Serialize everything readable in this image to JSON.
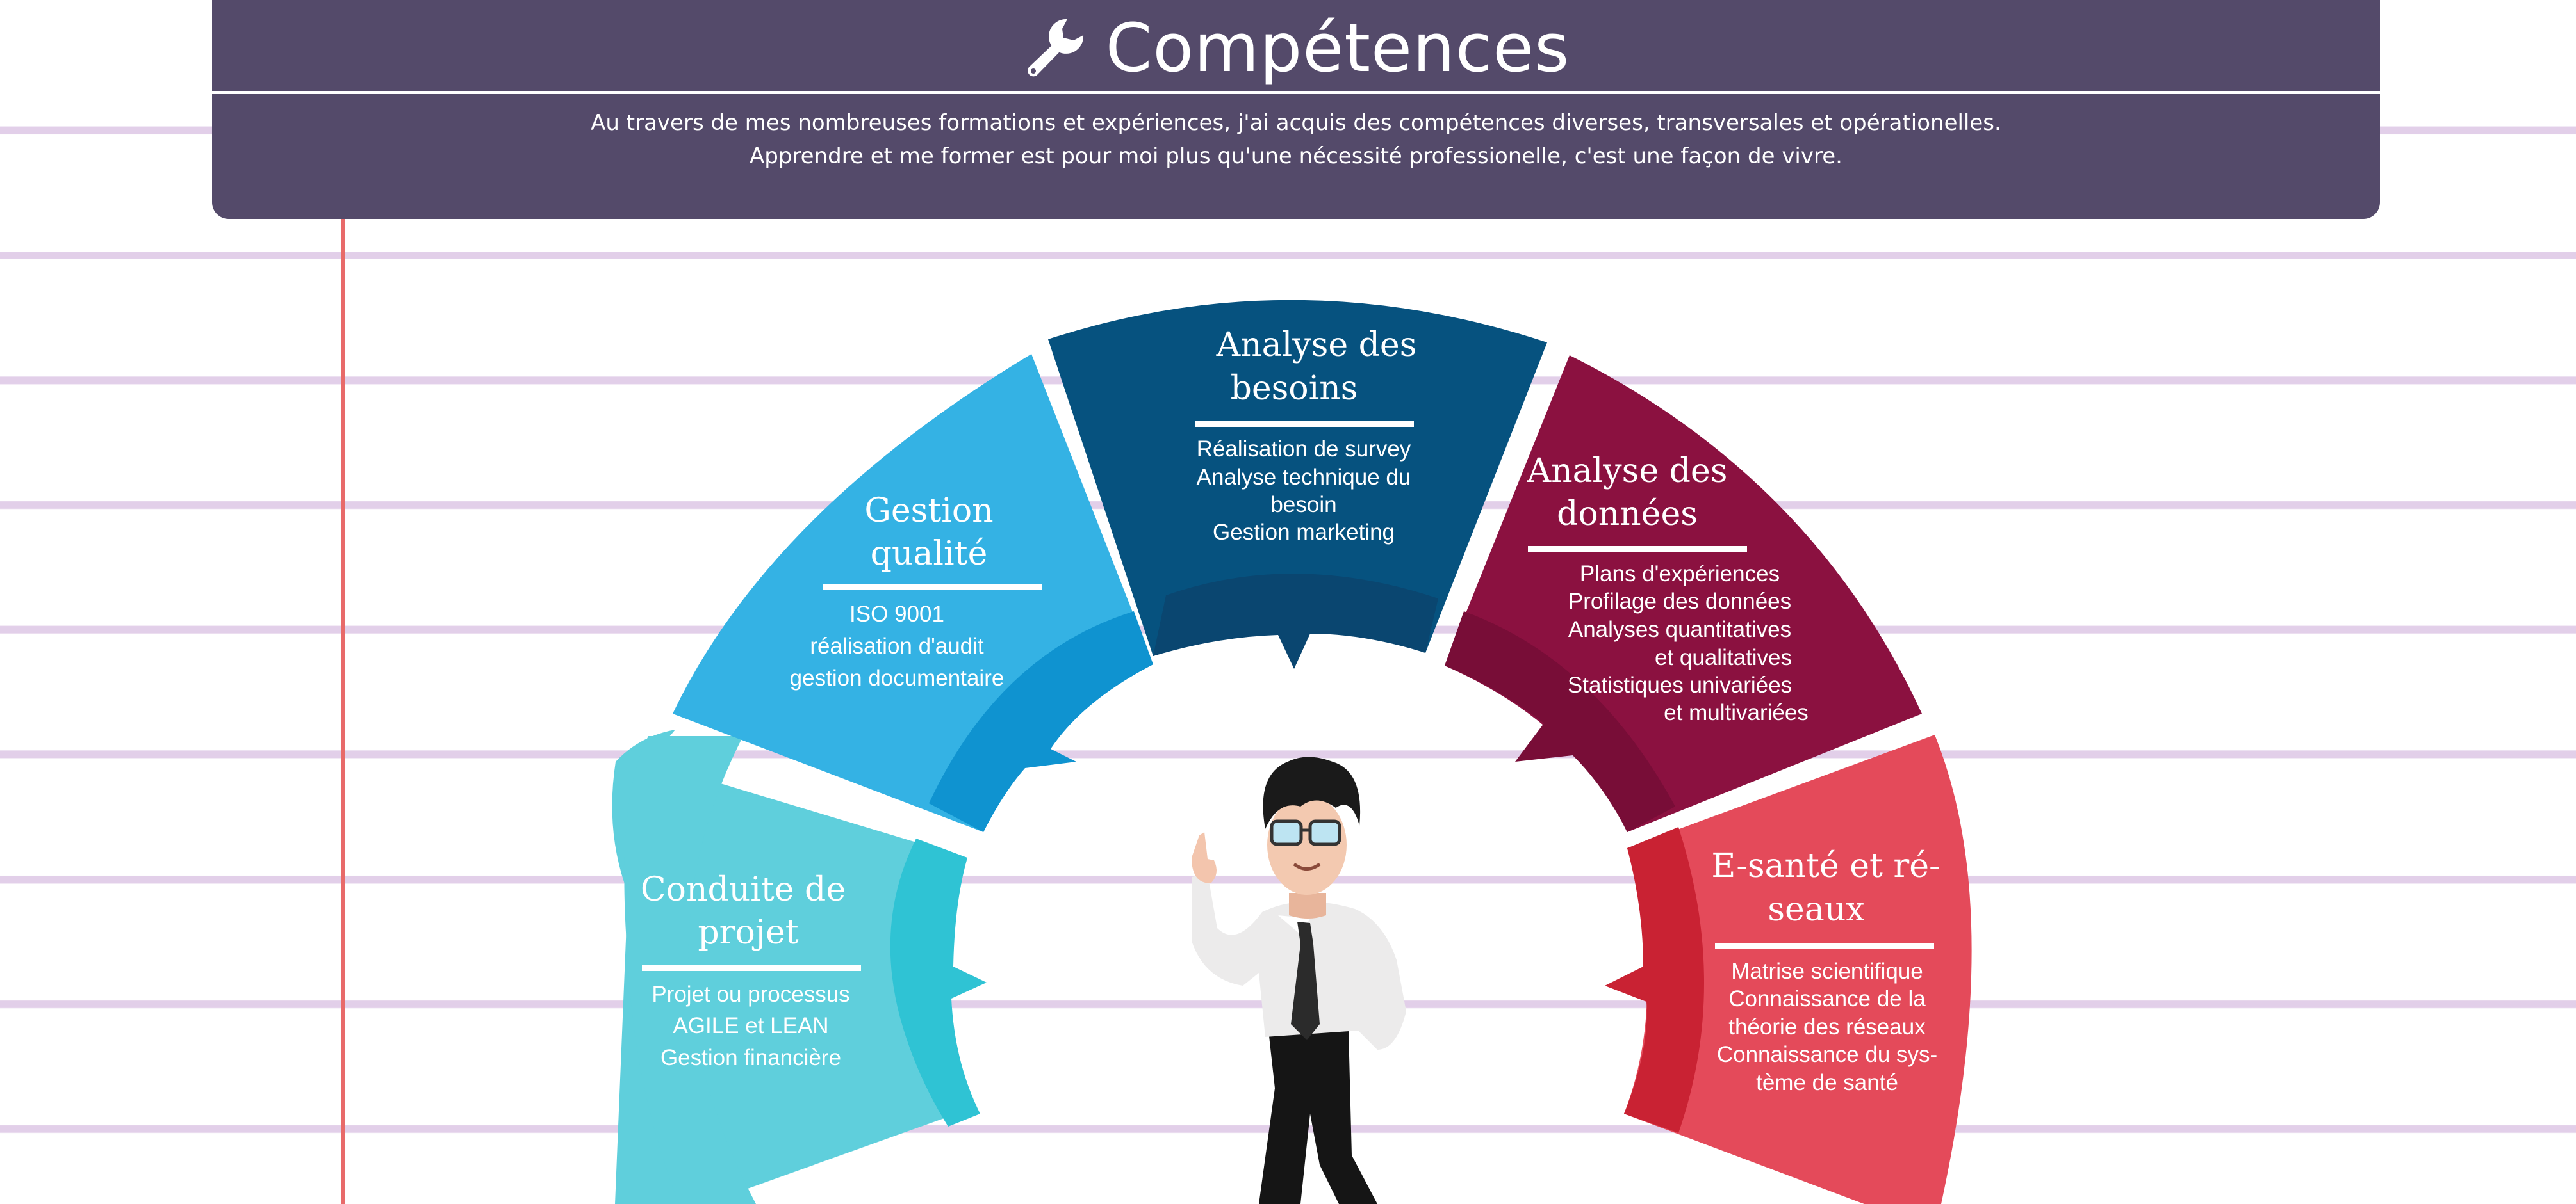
{
  "header": {
    "title": "Compétences",
    "icon": "wrench-icon",
    "description_line1": "Au travers de mes nombreuses formations et expériences, j'ai acquis des compétences diverses, transversales et opérationelles.",
    "description_line2": "Apprendre et me former est pour moi plus qu'une nécessité professionelle, c'est une façon de vivre."
  },
  "segments": {
    "projet": {
      "title_line1": "Conduite de",
      "title_line2": "projet",
      "items": [
        "Projet ou processus",
        "AGILE et LEAN",
        "Gestion financière"
      ],
      "color": "#5fcfdc"
    },
    "qualite": {
      "title_line1": "Gestion",
      "title_line2": "qualité",
      "items": [
        "ISO 9001",
        "réalisation d'audit",
        "gestion documentaire"
      ],
      "color": "#34b2e4"
    },
    "besoins": {
      "title_line1": "Analyse des",
      "title_line2": "besoins",
      "items": [
        "Réalisation de survey",
        "Analyse technique du",
        "besoin",
        "Gestion marketing"
      ],
      "color": "#06527f"
    },
    "donnees": {
      "title_line1": "Analyse des",
      "title_line2": "données",
      "items": [
        "Plans d'expériences",
        "Profilage des données",
        "Analyses  quantitatives",
        "et qualitatives",
        "Statistiques univariées",
        "et multivariées"
      ],
      "color": "#8b1140"
    },
    "esante": {
      "title_line1": "E-santé et    ré-",
      "title_line2": "seaux",
      "items": [
        "Matrise scientifique",
        "Connaissance de la",
        "théorie des réseaux",
        "Connaissance du sys-",
        "tème de santé"
      ],
      "color": "#e44a5a"
    }
  },
  "illustration": {
    "character": "cartoon-businessman"
  }
}
